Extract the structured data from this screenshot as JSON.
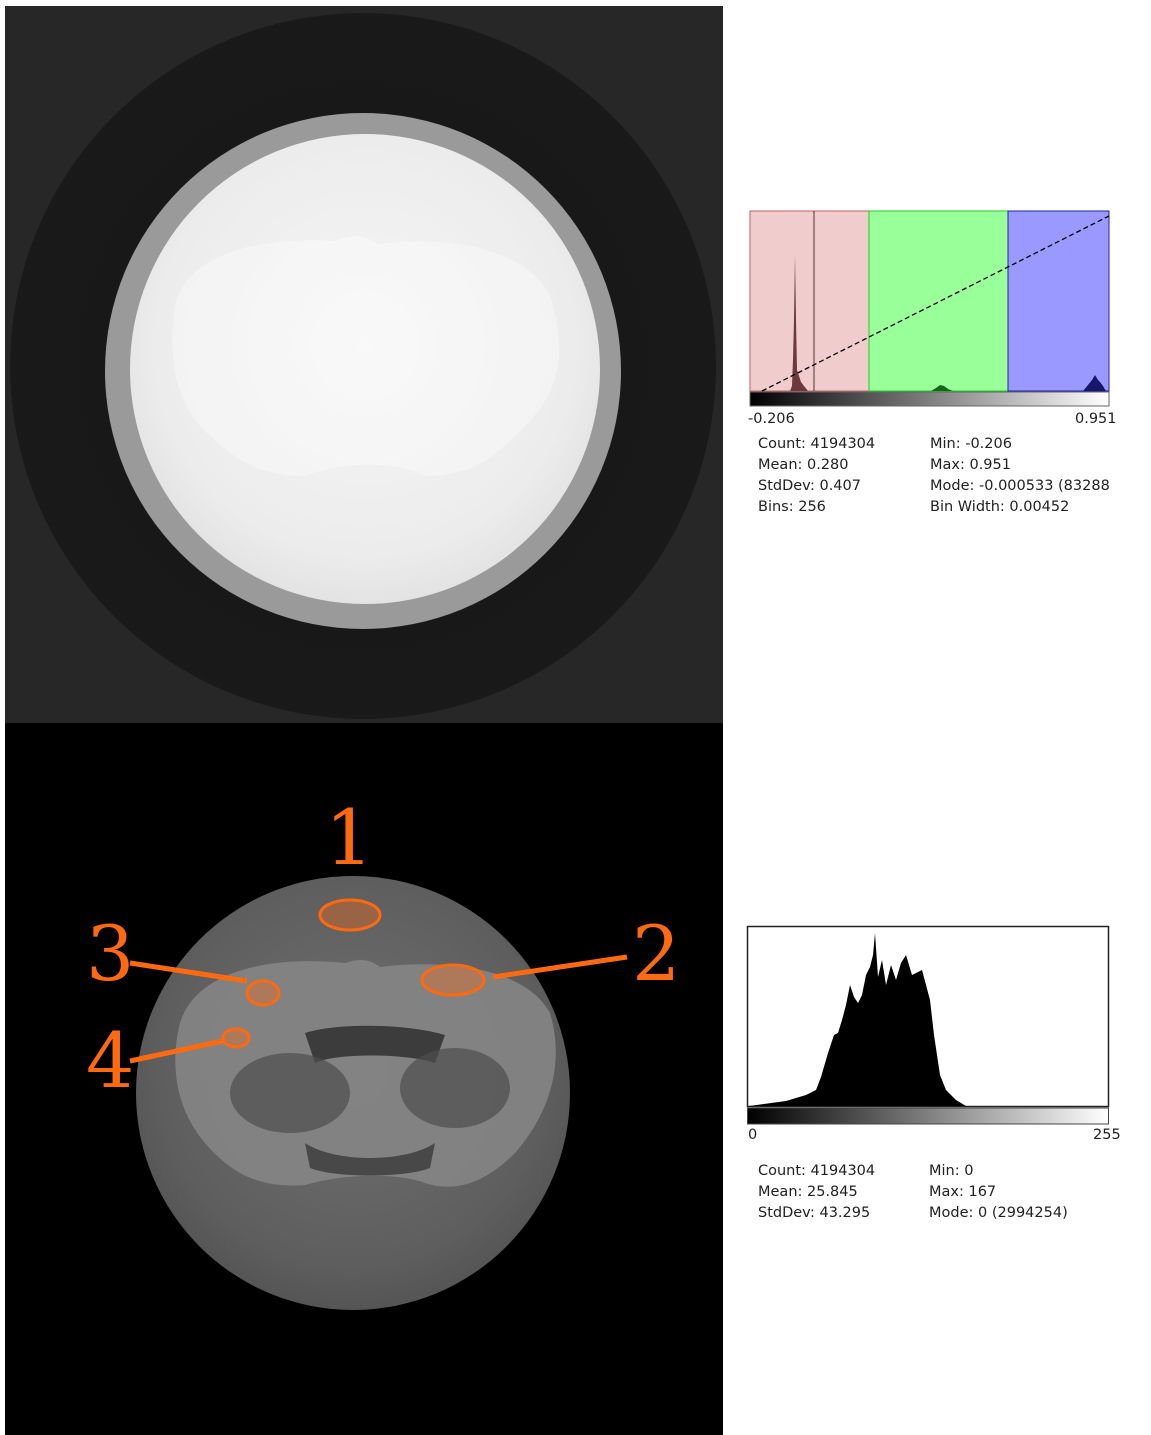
{
  "histogram_top": {
    "min_label": "-0.206",
    "max_label": "0.951",
    "stats_left": [
      "Count: 4194304",
      "Mean: 0.280",
      "StdDev: 0.407",
      "Bins: 256"
    ],
    "stats_right": [
      "Min: -0.206",
      "Max: 0.951",
      "Mode: -0.000533 (83288",
      "Bin Width: 0.00452"
    ],
    "region_colors": [
      "#f0cccc",
      "#99ff99",
      "#9999ff"
    ]
  },
  "histogram_bottom": {
    "min_label": "0",
    "max_label": "255",
    "stats_left": [
      "Count: 4194304",
      "Mean: 25.845",
      "StdDev: 43.295"
    ],
    "stats_right": [
      "Min: 0",
      "Max: 167",
      "Mode: 0 (2994254)"
    ]
  },
  "annotations": [
    {
      "label": "1"
    },
    {
      "label": "2"
    },
    {
      "label": "3"
    },
    {
      "label": "4"
    }
  ],
  "accent_color": "#ff6a10"
}
